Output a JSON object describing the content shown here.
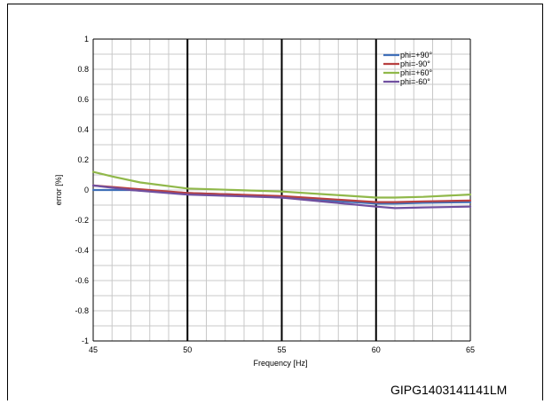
{
  "figure_id": "GIPG1403141141LM",
  "chart_data": {
    "type": "line",
    "xlabel": "Frequency [Hz]",
    "ylabel": "error [%]",
    "xlim": [
      45,
      65
    ],
    "ylim": [
      -1,
      1
    ],
    "x_ticks": [
      45,
      50,
      55,
      60,
      65
    ],
    "x_tick_labels": [
      "45",
      "50",
      "55",
      "60",
      "65"
    ],
    "y_ticks": [
      -1,
      -0.8,
      -0.6,
      -0.4,
      -0.2,
      0,
      0.2,
      0.4,
      0.6,
      0.8,
      1
    ],
    "y_tick_labels": [
      "-1",
      "-0.8",
      "-0.6",
      "-0.4",
      "-0.2",
      "0",
      "0.2",
      "0.4",
      "0.6",
      "0.8",
      "1"
    ],
    "grid": true,
    "legend_position": "top-right",
    "series": [
      {
        "name": "phi=+90°",
        "color": "#3f6fb8",
        "x": [
          45,
          47,
          50,
          52.5,
          55,
          57.5,
          60,
          61,
          62.5,
          65
        ],
        "y": [
          0.0,
          0.0,
          -0.02,
          -0.03,
          -0.05,
          -0.07,
          -0.09,
          -0.09,
          -0.085,
          -0.08
        ]
      },
      {
        "name": "phi=-90°",
        "color": "#b84040",
        "x": [
          45,
          47,
          50,
          52.5,
          55,
          57.5,
          60,
          61,
          62.5,
          65
        ],
        "y": [
          0.03,
          0.01,
          -0.02,
          -0.03,
          -0.04,
          -0.06,
          -0.08,
          -0.08,
          -0.075,
          -0.07
        ]
      },
      {
        "name": "phi=+60°",
        "color": "#90b84a",
        "x": [
          45,
          46,
          47.5,
          50,
          52.5,
          55,
          57.5,
          60,
          61,
          62.5,
          65
        ],
        "y": [
          0.12,
          0.09,
          0.05,
          0.01,
          0.0,
          -0.01,
          -0.03,
          -0.05,
          -0.05,
          -0.045,
          -0.03
        ]
      },
      {
        "name": "phi=-60°",
        "color": "#7050a0",
        "x": [
          45,
          47,
          50,
          52.5,
          55,
          57.5,
          60,
          61,
          62.5,
          65
        ],
        "y": [
          0.03,
          0.0,
          -0.03,
          -0.04,
          -0.05,
          -0.08,
          -0.11,
          -0.12,
          -0.115,
          -0.11
        ]
      }
    ]
  }
}
